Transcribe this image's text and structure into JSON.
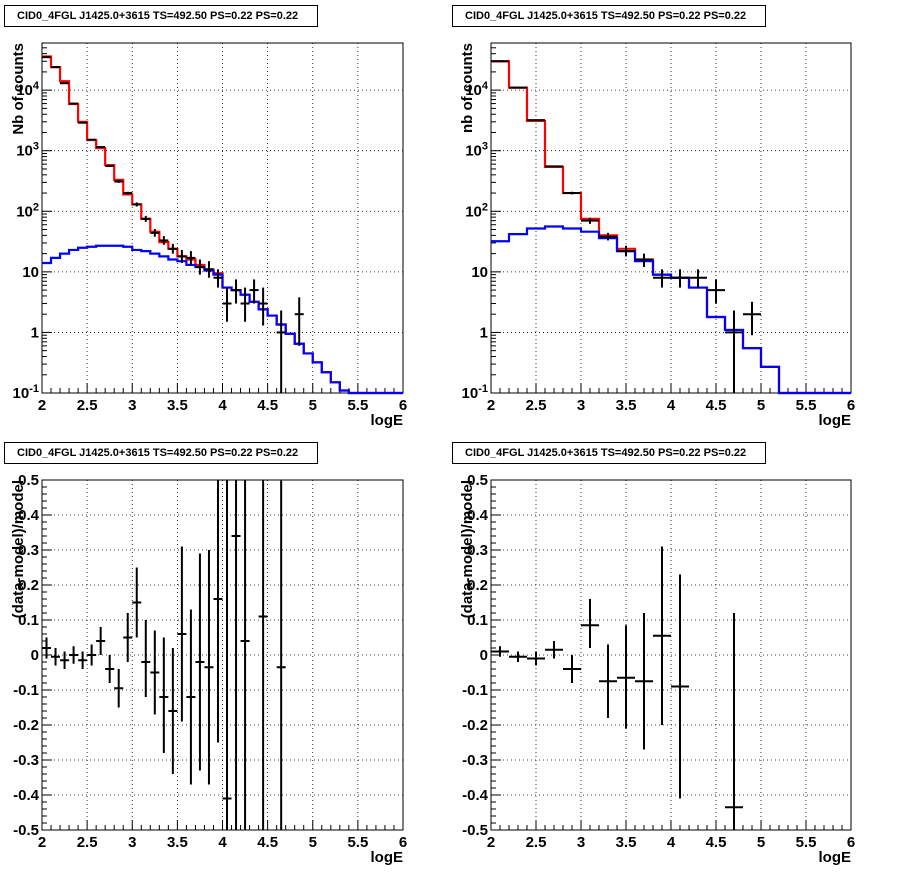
{
  "chart_data": [
    {
      "type": "histogram",
      "title": "CID0_4FGL J1425.0+3615 TS=492.50 PS=0.22 PS=0.22",
      "xlabel": "logE",
      "ylabel": "Nb of counts",
      "yscale": "log",
      "xlim": [
        2,
        6
      ],
      "ylim": [
        0.1,
        60000
      ],
      "xticks": [
        "2",
        "2.5",
        "3",
        "3.5",
        "4",
        "4.5",
        "5",
        "5.5",
        "6"
      ],
      "yticks": [
        "10^-1",
        "1",
        "10",
        "10^2",
        "10^3",
        "10^4"
      ],
      "grid": true,
      "binwidth": 0.1,
      "series": [
        {
          "color": "#ff0000",
          "style": "step",
          "edges": [
            2.0,
            2.1,
            2.2,
            2.3,
            2.4,
            2.5,
            2.6,
            2.7,
            2.8,
            2.9,
            3.0,
            3.1,
            3.2,
            3.3,
            3.4,
            3.5,
            3.6,
            3.7,
            3.8,
            3.9,
            4.0,
            4.1,
            4.2,
            4.3,
            4.4,
            4.5,
            4.6,
            4.7,
            4.8,
            4.9,
            5.0,
            5.1,
            5.2,
            5.3,
            5.4,
            5.5,
            5.6,
            5.7,
            5.8,
            5.9,
            6.0
          ],
          "values": [
            36000,
            24000,
            14000,
            5900,
            3000,
            1500,
            1100,
            580,
            330,
            190,
            130,
            75,
            46,
            31,
            24,
            18,
            16,
            13,
            11,
            9.5,
            5.5,
            5,
            4.2,
            3.2,
            2.4,
            1.9,
            1.35,
            0.95,
            0.65,
            0.45,
            0.32,
            0.22,
            0.15,
            0.11,
            0.1,
            0.1,
            0.1,
            0.1,
            0.1,
            0.1
          ]
        },
        {
          "color": "#0000ff",
          "style": "step",
          "edges": [
            2.0,
            2.1,
            2.2,
            2.3,
            2.4,
            2.5,
            2.6,
            2.7,
            2.8,
            2.9,
            3.0,
            3.1,
            3.2,
            3.3,
            3.4,
            3.5,
            3.6,
            3.7,
            3.8,
            3.9,
            4.0,
            4.1,
            4.2,
            4.3,
            4.4,
            4.5,
            4.6,
            4.7,
            4.8,
            4.9,
            5.0,
            5.1,
            5.2,
            5.3,
            5.4,
            5.5,
            5.6,
            5.7,
            5.8,
            5.9,
            6.0
          ],
          "values": [
            14,
            17,
            20,
            23,
            25,
            26,
            27,
            27,
            27,
            26,
            23,
            22,
            20,
            18,
            16,
            15,
            13,
            12,
            10.5,
            9,
            5.5,
            5,
            4.2,
            3.2,
            2.4,
            1.9,
            1.35,
            0.95,
            0.65,
            0.45,
            0.32,
            0.22,
            0.15,
            0.11,
            0.1,
            0.1,
            0.1,
            0.1,
            0.1,
            0.1
          ]
        }
      ],
      "points": {
        "color": "#000000",
        "x": [
          2.05,
          2.15,
          2.25,
          2.35,
          2.45,
          2.55,
          2.65,
          2.75,
          2.85,
          2.95,
          3.05,
          3.15,
          3.25,
          3.35,
          3.45,
          3.55,
          3.65,
          3.75,
          3.85,
          3.95,
          4.05,
          4.15,
          4.25,
          4.35,
          4.45,
          4.55,
          4.65,
          4.75,
          4.85
        ],
        "y": [
          35000,
          24000,
          13000,
          6000,
          2900,
          1520,
          1150,
          560,
          310,
          200,
          130,
          75,
          44,
          33,
          24,
          18,
          17,
          12,
          11,
          8,
          3,
          5,
          3,
          5,
          3,
          0,
          1,
          0,
          2
        ],
        "ylow": [
          34500,
          23700,
          12800,
          5900,
          2850,
          1480,
          1120,
          540,
          295,
          190,
          120,
          67,
          38,
          28,
          20,
          14,
          13,
          9,
          8,
          5.5,
          1.5,
          3,
          1.5,
          3,
          1.3,
          0,
          0.1,
          0,
          0.6
        ],
        "yhigh": [
          35500,
          24300,
          13200,
          6100,
          2950,
          1560,
          1180,
          580,
          330,
          210,
          140,
          84,
          51,
          39,
          29,
          23,
          22,
          16,
          15,
          11,
          5.5,
          7.5,
          5.5,
          7.5,
          5.5,
          0,
          2.3,
          0,
          3.8
        ]
      }
    },
    {
      "type": "histogram",
      "title": "CID0_4FGL J1425.0+3615 TS=492.50 PS=0.22 PS=0.22",
      "xlabel": "logE",
      "ylabel": "nb of counts",
      "yscale": "log",
      "xlim": [
        2,
        6
      ],
      "ylim": [
        0.1,
        60000
      ],
      "xticks": [
        "2",
        "2.5",
        "3",
        "3.5",
        "4",
        "4.5",
        "5",
        "5.5",
        "6"
      ],
      "yticks": [
        "10^-1",
        "1",
        "10",
        "10^2",
        "10^3",
        "10^4"
      ],
      "grid": true,
      "binwidth": 0.2,
      "series": [
        {
          "color": "#ff0000",
          "style": "step",
          "edges": [
            2.0,
            2.2,
            2.4,
            2.6,
            2.8,
            3.0,
            3.2,
            3.4,
            3.6,
            3.8,
            4.0,
            4.2,
            4.4,
            4.6,
            4.8,
            5.0,
            5.2,
            5.4,
            5.6,
            5.8,
            6.0
          ],
          "values": [
            30000,
            11000,
            3100,
            540,
            200,
            75,
            40,
            24,
            16,
            9,
            8,
            5.5,
            1.8,
            1.1,
            0.55,
            0.27,
            0.1,
            0.1,
            0.1,
            0.1
          ]
        },
        {
          "color": "#0000ff",
          "style": "step",
          "edges": [
            2.0,
            2.2,
            2.4,
            2.6,
            2.8,
            3.0,
            3.2,
            3.4,
            3.6,
            3.8,
            4.0,
            4.2,
            4.4,
            4.6,
            4.8,
            5.0,
            5.2,
            5.4,
            5.6,
            5.8,
            6.0
          ],
          "values": [
            32,
            42,
            52,
            56,
            52,
            46,
            36,
            22,
            15,
            9,
            8,
            5.5,
            1.8,
            1.1,
            0.55,
            0.27,
            0.1,
            0.1,
            0.1,
            0.1
          ]
        }
      ],
      "points": {
        "color": "#000000",
        "x": [
          2.1,
          2.3,
          2.5,
          2.7,
          2.9,
          3.1,
          3.3,
          3.5,
          3.7,
          3.9,
          4.1,
          4.3,
          4.5,
          4.7,
          4.9
        ],
        "y": [
          30000,
          11000,
          3200,
          550,
          200,
          70,
          38,
          22,
          16,
          8,
          8,
          8,
          5,
          1,
          2
        ],
        "ylow": [
          29800,
          10900,
          3150,
          530,
          190,
          62,
          33,
          18,
          12,
          5.5,
          5.5,
          5.5,
          3,
          0.1,
          0.9
        ],
        "yhigh": [
          30200,
          11100,
          3250,
          570,
          210,
          78,
          44,
          27,
          20,
          11,
          11,
          11,
          7.5,
          2.3,
          3.2
        ]
      }
    },
    {
      "type": "scatter",
      "title": "CID0_4FGL J1425.0+3615 TS=492.50 PS=0.22 PS=0.22",
      "xlabel": "logE",
      "ylabel": "(data-model)/model",
      "xlim": [
        2,
        6
      ],
      "ylim": [
        -0.5,
        0.5
      ],
      "xticks": [
        "2",
        "2.5",
        "3",
        "3.5",
        "4",
        "4.5",
        "5",
        "5.5",
        "6"
      ],
      "yticks": [
        "-0.5",
        "-0.4",
        "-0.3",
        "-0.2",
        "-0.1",
        "0",
        "0.1",
        "0.2",
        "0.3",
        "0.4",
        "0.5"
      ],
      "grid": true,
      "binwidth": 0.1,
      "points": {
        "color": "#000000",
        "x": [
          2.05,
          2.15,
          2.25,
          2.35,
          2.45,
          2.55,
          2.65,
          2.75,
          2.85,
          2.95,
          3.05,
          3.15,
          3.25,
          3.35,
          3.45,
          3.55,
          3.65,
          3.75,
          3.85,
          3.95,
          4.05,
          4.15,
          4.25,
          4.35,
          4.45,
          4.65
        ],
        "y": [
          0.02,
          -0.005,
          -0.015,
          0.0,
          -0.015,
          0.0,
          0.04,
          -0.04,
          -0.095,
          0.05,
          0.15,
          -0.02,
          -0.05,
          -0.12,
          -0.16,
          0.06,
          -0.12,
          -0.02,
          -0.035,
          0.16,
          -0.41,
          0.34,
          0.04,
          null,
          0.11,
          -0.035
        ],
        "ylow": [
          -0.01,
          -0.03,
          -0.04,
          -0.025,
          -0.04,
          -0.03,
          0.0,
          -0.08,
          -0.15,
          -0.02,
          0.05,
          -0.12,
          -0.17,
          -0.28,
          -0.34,
          -0.19,
          -0.37,
          -0.33,
          -0.37,
          -0.25,
          -0.5,
          -0.5,
          -0.5,
          null,
          -0.5,
          -0.5
        ],
        "yhigh": [
          0.05,
          0.02,
          0.01,
          0.025,
          0.01,
          0.03,
          0.08,
          0.0,
          -0.04,
          0.12,
          0.25,
          0.1,
          0.07,
          0.05,
          0.02,
          0.31,
          0.13,
          0.29,
          0.3,
          0.5,
          0.5,
          0.5,
          0.5,
          null,
          0.5,
          0.5
        ]
      }
    },
    {
      "type": "scatter",
      "title": "CID0_4FGL J1425.0+3615 TS=492.50 PS=0.22 PS=0.22",
      "xlabel": "logE",
      "ylabel": "(data-model)/model",
      "xlim": [
        2,
        6
      ],
      "ylim": [
        -0.5,
        0.5
      ],
      "xticks": [
        "2",
        "2.5",
        "3",
        "3.5",
        "4",
        "4.5",
        "5",
        "5.5",
        "6"
      ],
      "yticks": [
        "-0.5",
        "-0.4",
        "-0.3",
        "-0.2",
        "-0.1",
        "0",
        "0.1",
        "0.2",
        "0.3",
        "0.4",
        "0.5"
      ],
      "grid": true,
      "binwidth": 0.2,
      "points": {
        "color": "#000000",
        "x": [
          2.1,
          2.3,
          2.5,
          2.7,
          2.9,
          3.1,
          3.3,
          3.5,
          3.7,
          3.9,
          4.1,
          4.7
        ],
        "y": [
          0.01,
          -0.005,
          -0.01,
          0.015,
          -0.04,
          0.085,
          -0.075,
          -0.065,
          -0.075,
          0.055,
          -0.09,
          -0.435
        ],
        "ylow": [
          -0.005,
          -0.02,
          -0.03,
          -0.01,
          -0.08,
          0.02,
          -0.18,
          -0.21,
          -0.27,
          -0.2,
          -0.41,
          -0.5
        ],
        "yhigh": [
          0.025,
          0.01,
          0.01,
          0.04,
          0.0,
          0.16,
          0.03,
          0.085,
          0.12,
          0.31,
          0.23,
          0.12
        ]
      }
    }
  ]
}
